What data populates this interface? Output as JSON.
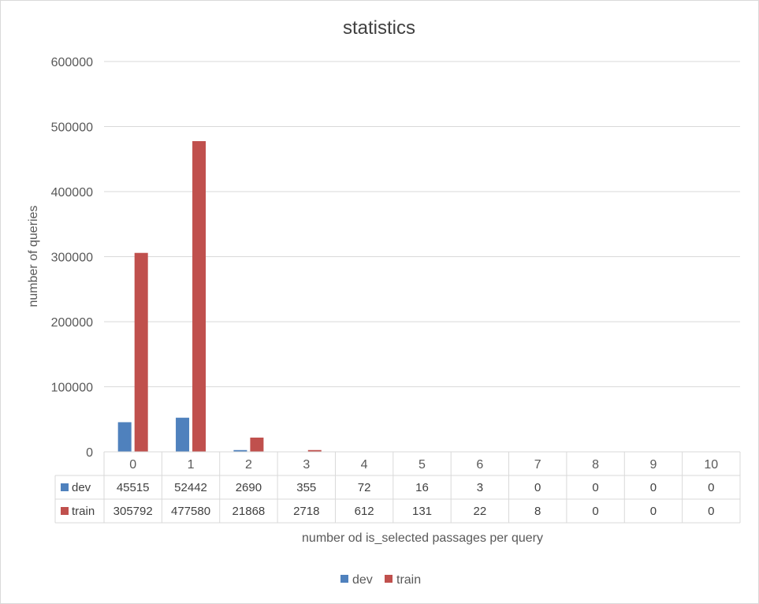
{
  "chart_data": {
    "type": "bar",
    "title": "statistics",
    "xlabel": "number od is_selected passages per query",
    "ylabel": "number of queries",
    "categories": [
      "0",
      "1",
      "2",
      "3",
      "4",
      "5",
      "6",
      "7",
      "8",
      "9",
      "10"
    ],
    "series": [
      {
        "name": "dev",
        "values": [
          45515,
          52442,
          2690,
          355,
          72,
          16,
          3,
          0,
          0,
          0,
          0
        ]
      },
      {
        "name": "train",
        "values": [
          305792,
          477580,
          21868,
          2718,
          612,
          131,
          22,
          8,
          0,
          0,
          0
        ]
      }
    ],
    "y_ticks": [
      "0",
      "100000",
      "200000",
      "300000",
      "400000",
      "500000",
      "600000"
    ],
    "ylim": [
      0,
      600000
    ],
    "grid": true,
    "legend": "bottom",
    "data_table": true,
    "colors": {
      "dev": "#4f81bd",
      "train": "#c0504d",
      "grid": "#d9d9d9",
      "text": "#595959"
    }
  }
}
